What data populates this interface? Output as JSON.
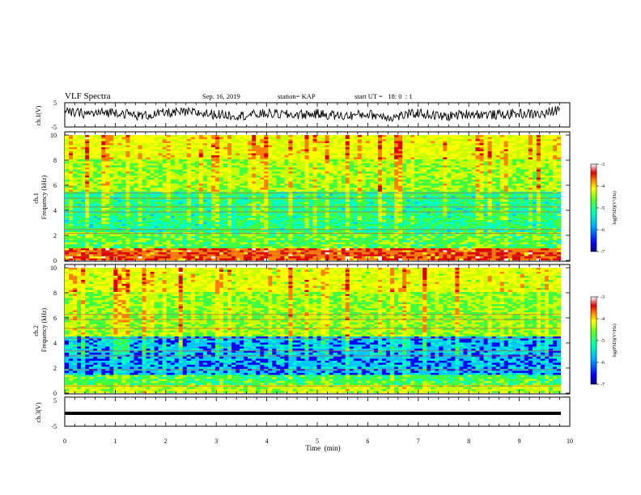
{
  "header": {
    "title": "VLF Spectra",
    "date": "Sep. 16, 2019",
    "station": "station= KAP",
    "start_ut": "start UT =   18: 0  : 1"
  },
  "colors": {
    "colormap": [
      "#00008b",
      "#0000ff",
      "#00c8ff",
      "#00ffc0",
      "#40ff40",
      "#c8ff00",
      "#ffff00",
      "#ff8000",
      "#e00000",
      "#ffffff"
    ],
    "trace": "#000000"
  },
  "chart_data": [
    {
      "type": "line",
      "name": "ch1_waveform",
      "ylabel": "ch.1(V)",
      "ylim": [
        -5,
        5
      ],
      "y_ticks": [
        "5",
        "-5"
      ],
      "description_values": "noisy voltage trace around 0 V for first 9.8 min",
      "x": [
        0,
        0.5,
        1,
        1.5,
        2,
        2.5,
        3,
        3.5,
        4,
        4.5,
        5,
        5.5,
        6,
        6.5,
        7,
        7.5,
        8,
        8.5,
        9,
        9.5,
        9.8
      ],
      "y": [
        1.0,
        0.5,
        1.2,
        -0.5,
        0.8,
        1.0,
        0.2,
        -0.3,
        0.5,
        0.0,
        0.4,
        -0.5,
        0.3,
        -1.0,
        0.8,
        -0.8,
        0.5,
        0.0,
        0.5,
        0.2,
        2.5
      ]
    },
    {
      "type": "heatmap",
      "name": "ch1_spectrogram",
      "ylabel": "ch.1\nFrequency (kHz)",
      "ylim": [
        0,
        10
      ],
      "y_ticks": [
        "0",
        "2",
        "4",
        "6",
        "8",
        "10"
      ],
      "colorbar": {
        "label": "log(PSD)(V²/Hz)",
        "range": [
          -7,
          -3
        ],
        "ticks": [
          "-3",
          "-4",
          "-5",
          "-6",
          "-7"
        ]
      }
    },
    {
      "type": "heatmap",
      "name": "ch2_spectrogram",
      "ylabel": "ch.2\nFrequency (kHz)",
      "ylim": [
        0,
        10
      ],
      "y_ticks": [
        "0",
        "2",
        "4",
        "6",
        "8",
        "10"
      ],
      "colorbar": {
        "label": "log(PSD)(V²/Hz)",
        "range": [
          -7,
          -3
        ],
        "ticks": [
          "-3",
          "-4",
          "-5",
          "-6",
          "-7"
        ]
      }
    },
    {
      "type": "line",
      "name": "ch3_waveform",
      "ylabel": "ch.3(V)",
      "ylim": [
        -5,
        5
      ],
      "y_ticks": [
        "5",
        "-5"
      ],
      "x": [
        0,
        9.8
      ],
      "y": [
        -1,
        -1
      ]
    }
  ],
  "x_axis": {
    "label": "Time  (min)",
    "range": [
      0,
      10
    ],
    "ticks": [
      "0",
      "1",
      "2",
      "3",
      "4",
      "5",
      "6",
      "7",
      "8",
      "9",
      "10"
    ]
  }
}
